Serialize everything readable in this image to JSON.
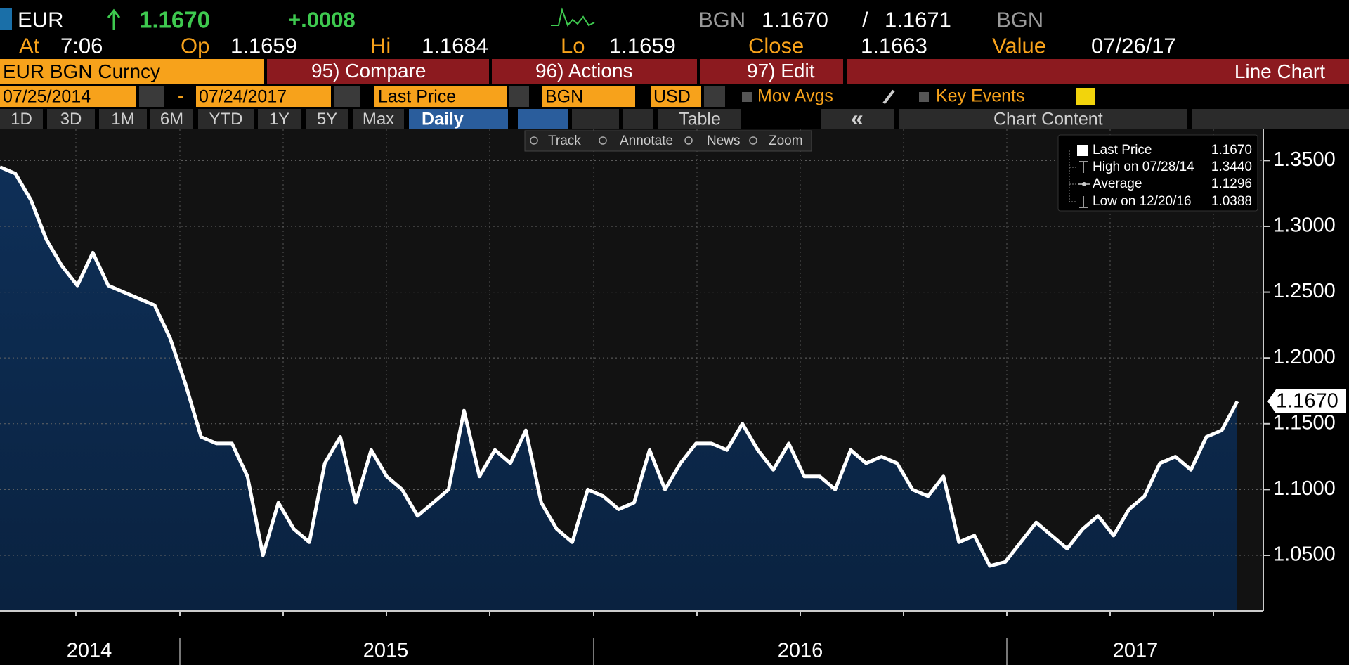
{
  "header": {
    "ticker": "EUR",
    "last": "1.1670",
    "change": "+.0008",
    "bid_source": "BGN",
    "bid": "1.1670",
    "separator": "/",
    "ask": "1.1671",
    "ask_source": "BGN"
  },
  "quote": [
    {
      "label": "At",
      "value": "7:06"
    },
    {
      "label": "Op",
      "value": "1.1659"
    },
    {
      "label": "Hi",
      "value": "1.1684"
    },
    {
      "label": "Lo",
      "value": "1.1659"
    },
    {
      "label": "Close",
      "value": "1.1663"
    },
    {
      "label": "Value",
      "value": "07/26/17"
    }
  ],
  "menu": {
    "security": "EUR BGN Curncy",
    "compare": "95) Compare",
    "actions": "96) Actions",
    "edit": "97) Edit",
    "chart_type": "Line Chart"
  },
  "settings": {
    "start_date": "07/25/2014",
    "separator": "-",
    "end_date": "07/24/2017",
    "field": "Last Price",
    "source": "BGN",
    "currency": "USD",
    "mov_avgs": "Mov Avgs",
    "key_events": "Key Events"
  },
  "toolbar": {
    "periods": [
      "1D",
      "3D",
      "1M",
      "6M",
      "YTD",
      "1Y",
      "5Y",
      "Max"
    ],
    "frequency": "Daily",
    "table": "Table",
    "collapse": "«",
    "chart_content": "Chart Content"
  },
  "tools": [
    "Track",
    "Annotate",
    "News",
    "Zoom"
  ],
  "chart_data": {
    "type": "line",
    "series": [
      {
        "name": "Last Price",
        "color": "#ffffff",
        "values": [
          1.345,
          1.34,
          1.32,
          1.29,
          1.27,
          1.255,
          1.28,
          1.255,
          1.25,
          1.245,
          1.24,
          1.215,
          1.18,
          1.14,
          1.135,
          1.135,
          1.11,
          1.05,
          1.09,
          1.07,
          1.06,
          1.12,
          1.14,
          1.09,
          1.13,
          1.11,
          1.1,
          1.08,
          1.09,
          1.1,
          1.16,
          1.11,
          1.13,
          1.12,
          1.145,
          1.09,
          1.07,
          1.06,
          1.1,
          1.095,
          1.085,
          1.09,
          1.13,
          1.1,
          1.12,
          1.135,
          1.135,
          1.13,
          1.15,
          1.13,
          1.115,
          1.135,
          1.11,
          1.11,
          1.1,
          1.13,
          1.12,
          1.125,
          1.12,
          1.1,
          1.095,
          1.11,
          1.06,
          1.065,
          1.042,
          1.045,
          1.06,
          1.075,
          1.065,
          1.055,
          1.07,
          1.08,
          1.065,
          1.085,
          1.095,
          1.12,
          1.125,
          1.115,
          1.14,
          1.145,
          1.167
        ]
      }
    ],
    "ylim": [
      1.0078,
      1.3737
    ],
    "yticks": [
      {
        "value": 1.05,
        "label": "1.0500"
      },
      {
        "value": 1.1,
        "label": "1.1000"
      },
      {
        "value": 1.15,
        "label": "1.1500"
      },
      {
        "value": 1.2,
        "label": "1.2000"
      },
      {
        "value": 1.25,
        "label": "1.2500"
      },
      {
        "value": 1.3,
        "label": "1.3000"
      },
      {
        "value": 1.35,
        "label": "1.3500"
      }
    ],
    "grid": true,
    "x_labels": [
      "2014",
      "2015",
      "2016",
      "2017"
    ],
    "last_price_tag": "1.1670",
    "legend": [
      {
        "value": "1.1670"
      },
      {
        "name": "High on 07/28/14",
        "value": "1.3440"
      },
      {
        "name": "Average",
        "value": "1.1296"
      },
      {
        "name": "Low on 12/20/16",
        "value": "1.0388"
      }
    ]
  }
}
